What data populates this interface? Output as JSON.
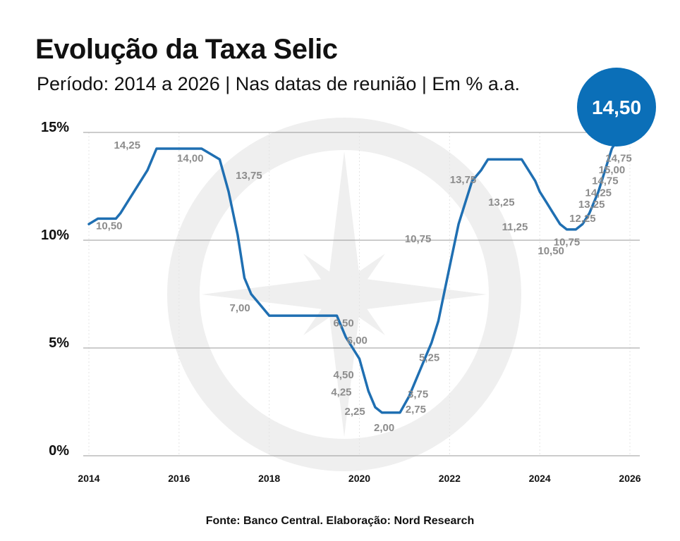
{
  "title": "Evolução da Taxa Selic",
  "subtitle": "Período: 2014 a 2026 | Nas datas de reunião | Em % a.a.",
  "source": "Fonte: Banco Central. Elaboração: Nord Research",
  "colors": {
    "line": "#1f6fb2",
    "badge": "#0b6fb8",
    "label": "#8c8c8c",
    "watermark": "#efefef"
  },
  "badge": {
    "value": "14,50"
  },
  "chart_data": {
    "type": "line",
    "title": "Evolução da Taxa Selic",
    "xlabel": "",
    "ylabel": "",
    "xlim": [
      2014,
      2026
    ],
    "ylim": [
      0,
      15
    ],
    "grid": true,
    "y_ticks": [
      {
        "value": 0,
        "label": "0%"
      },
      {
        "value": 5,
        "label": "5%"
      },
      {
        "value": 10,
        "label": "10%"
      },
      {
        "value": 15,
        "label": "15%"
      }
    ],
    "x_ticks": [
      2014,
      2016,
      2018,
      2020,
      2022,
      2024,
      2026
    ],
    "series": [
      {
        "points": [
          [
            2014.0,
            10.75
          ],
          [
            2014.2,
            11.0
          ],
          [
            2014.3,
            11.0
          ],
          [
            2014.6,
            11.0
          ],
          [
            2014.7,
            11.25
          ],
          [
            2014.85,
            11.75
          ],
          [
            2015.0,
            12.25
          ],
          [
            2015.3,
            13.25
          ],
          [
            2015.5,
            14.25
          ],
          [
            2016.5,
            14.25
          ],
          [
            2016.7,
            14.0
          ],
          [
            2016.9,
            13.75
          ],
          [
            2017.1,
            12.25
          ],
          [
            2017.3,
            10.25
          ],
          [
            2017.45,
            8.25
          ],
          [
            2017.6,
            7.5
          ],
          [
            2017.8,
            7.0
          ],
          [
            2018.0,
            6.5
          ],
          [
            2019.5,
            6.5
          ],
          [
            2019.6,
            6.0
          ],
          [
            2019.7,
            5.5
          ],
          [
            2019.85,
            5.0
          ],
          [
            2020.0,
            4.5
          ],
          [
            2020.1,
            3.75
          ],
          [
            2020.2,
            3.0
          ],
          [
            2020.35,
            2.25
          ],
          [
            2020.5,
            2.0
          ],
          [
            2020.9,
            2.0
          ],
          [
            2021.1,
            2.75
          ],
          [
            2021.25,
            3.5
          ],
          [
            2021.4,
            4.25
          ],
          [
            2021.6,
            5.25
          ],
          [
            2021.75,
            6.25
          ],
          [
            2021.9,
            7.75
          ],
          [
            2022.05,
            9.25
          ],
          [
            2022.2,
            10.75
          ],
          [
            2022.35,
            11.75
          ],
          [
            2022.5,
            12.75
          ],
          [
            2022.7,
            13.25
          ],
          [
            2022.85,
            13.75
          ],
          [
            2023.6,
            13.75
          ],
          [
            2023.75,
            13.25
          ],
          [
            2023.9,
            12.75
          ],
          [
            2024.0,
            12.25
          ],
          [
            2024.15,
            11.75
          ],
          [
            2024.3,
            11.25
          ],
          [
            2024.45,
            10.75
          ],
          [
            2024.6,
            10.5
          ],
          [
            2024.8,
            10.5
          ],
          [
            2024.95,
            10.75
          ],
          [
            2025.1,
            11.25
          ],
          [
            2025.3,
            12.25
          ],
          [
            2025.45,
            13.25
          ],
          [
            2025.6,
            14.25
          ],
          [
            2025.75,
            14.75
          ],
          [
            2025.85,
            15.0
          ]
        ]
      }
    ],
    "annotations": [
      {
        "text": "10,50",
        "x": 2014.45,
        "y": 10.5,
        "anchor": "middle"
      },
      {
        "text": "14,25",
        "x": 2014.85,
        "y": 14.25,
        "anchor": "middle"
      },
      {
        "text": "14,00",
        "x": 2016.25,
        "y": 13.65,
        "anchor": "middle"
      },
      {
        "text": "13,75",
        "x": 2017.55,
        "y": 12.85,
        "anchor": "middle"
      },
      {
        "text": "7,00",
        "x": 2017.35,
        "y": 6.7,
        "anchor": "middle"
      },
      {
        "text": "6,50",
        "x": 2019.65,
        "y": 6.0,
        "anchor": "middle"
      },
      {
        "text": "6,00",
        "x": 2019.95,
        "y": 5.2,
        "anchor": "middle"
      },
      {
        "text": "4,50",
        "x": 2019.65,
        "y": 3.6,
        "anchor": "middle"
      },
      {
        "text": "4,25",
        "x": 2019.6,
        "y": 2.8,
        "anchor": "middle"
      },
      {
        "text": "2,25",
        "x": 2019.9,
        "y": 1.9,
        "anchor": "middle"
      },
      {
        "text": "2,00",
        "x": 2020.55,
        "y": 1.15,
        "anchor": "middle"
      },
      {
        "text": "2,75",
        "x": 2021.25,
        "y": 2.0,
        "anchor": "middle"
      },
      {
        "text": "3,75",
        "x": 2021.3,
        "y": 2.7,
        "anchor": "middle"
      },
      {
        "text": "5,25",
        "x": 2021.55,
        "y": 4.4,
        "anchor": "middle"
      },
      {
        "text": "10,75",
        "x": 2021.3,
        "y": 9.9,
        "anchor": "middle"
      },
      {
        "text": "13,75",
        "x": 2022.3,
        "y": 12.65,
        "anchor": "middle"
      },
      {
        "text": "13,25",
        "x": 2023.15,
        "y": 11.6,
        "anchor": "middle"
      },
      {
        "text": "11,25",
        "x": 2023.45,
        "y": 10.45,
        "anchor": "middle"
      },
      {
        "text": "10,50",
        "x": 2024.25,
        "y": 9.35,
        "anchor": "middle"
      },
      {
        "text": "10,75",
        "x": 2024.6,
        "y": 9.75,
        "anchor": "middle"
      },
      {
        "text": "12,25",
        "x": 2024.95,
        "y": 10.85,
        "anchor": "middle"
      },
      {
        "text": "13,25",
        "x": 2025.15,
        "y": 11.5,
        "anchor": "middle"
      },
      {
        "text": "14,25",
        "x": 2025.3,
        "y": 12.05,
        "anchor": "middle"
      },
      {
        "text": "14,75",
        "x": 2025.45,
        "y": 12.6,
        "anchor": "middle"
      },
      {
        "text": "15,00",
        "x": 2025.6,
        "y": 13.1,
        "anchor": "middle"
      },
      {
        "text": "14,75",
        "x": 2025.75,
        "y": 13.65,
        "anchor": "middle"
      }
    ]
  }
}
